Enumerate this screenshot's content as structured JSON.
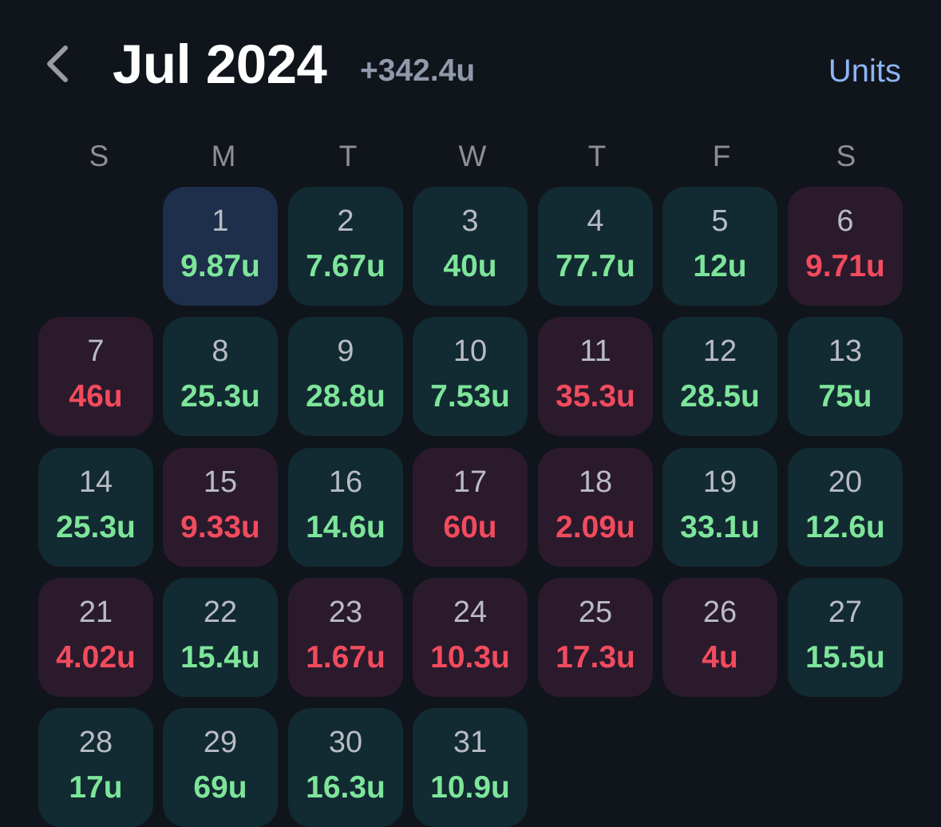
{
  "header": {
    "title": "Jul 2024",
    "total": "+342.4u",
    "units_label": "Units",
    "back_icon": "chevron-left-icon"
  },
  "weekdays": [
    "S",
    "M",
    "T",
    "W",
    "T",
    "F",
    "S"
  ],
  "colors": {
    "background": "#10141b",
    "positive_cell": "#122a31",
    "negative_cell": "#2b1a2c",
    "today_cell": "#1d2f4a",
    "positive_text": "#7de59a",
    "negative_text": "#f24b5e",
    "accent": "#8cb4f5"
  },
  "calendar": {
    "first_weekday_index": 1,
    "days": [
      {
        "day": "1",
        "value": "9.87u",
        "status": "today"
      },
      {
        "day": "2",
        "value": "7.67u",
        "status": "pos"
      },
      {
        "day": "3",
        "value": "40u",
        "status": "pos"
      },
      {
        "day": "4",
        "value": "77.7u",
        "status": "pos"
      },
      {
        "day": "5",
        "value": "12u",
        "status": "pos"
      },
      {
        "day": "6",
        "value": "9.71u",
        "status": "neg"
      },
      {
        "day": "7",
        "value": "46u",
        "status": "neg"
      },
      {
        "day": "8",
        "value": "25.3u",
        "status": "pos"
      },
      {
        "day": "9",
        "value": "28.8u",
        "status": "pos"
      },
      {
        "day": "10",
        "value": "7.53u",
        "status": "pos"
      },
      {
        "day": "11",
        "value": "35.3u",
        "status": "neg"
      },
      {
        "day": "12",
        "value": "28.5u",
        "status": "pos"
      },
      {
        "day": "13",
        "value": "75u",
        "status": "pos"
      },
      {
        "day": "14",
        "value": "25.3u",
        "status": "pos"
      },
      {
        "day": "15",
        "value": "9.33u",
        "status": "neg"
      },
      {
        "day": "16",
        "value": "14.6u",
        "status": "pos"
      },
      {
        "day": "17",
        "value": "60u",
        "status": "neg"
      },
      {
        "day": "18",
        "value": "2.09u",
        "status": "neg"
      },
      {
        "day": "19",
        "value": "33.1u",
        "status": "pos"
      },
      {
        "day": "20",
        "value": "12.6u",
        "status": "pos"
      },
      {
        "day": "21",
        "value": "4.02u",
        "status": "neg"
      },
      {
        "day": "22",
        "value": "15.4u",
        "status": "pos"
      },
      {
        "day": "23",
        "value": "1.67u",
        "status": "neg"
      },
      {
        "day": "24",
        "value": "10.3u",
        "status": "neg"
      },
      {
        "day": "25",
        "value": "17.3u",
        "status": "neg"
      },
      {
        "day": "26",
        "value": "4u",
        "status": "neg"
      },
      {
        "day": "27",
        "value": "15.5u",
        "status": "pos"
      },
      {
        "day": "28",
        "value": "17u",
        "status": "pos"
      },
      {
        "day": "29",
        "value": "69u",
        "status": "pos"
      },
      {
        "day": "30",
        "value": "16.3u",
        "status": "pos"
      },
      {
        "day": "31",
        "value": "10.9u",
        "status": "pos"
      }
    ]
  }
}
